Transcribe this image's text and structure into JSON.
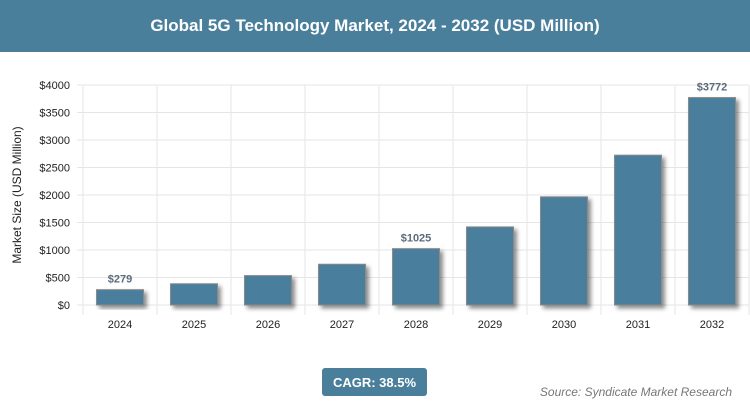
{
  "header": {
    "title": "Global 5G Technology Market, 2024 - 2032 (USD Million)"
  },
  "chart_data": {
    "type": "bar",
    "title": "Global 5G Technology Market, 2024 - 2032 (USD Million)",
    "xlabel": "",
    "ylabel": "Market Size (USD Million)",
    "ylim": [
      0,
      4000
    ],
    "yticks": [
      "$0",
      "$500",
      "$1000",
      "$1500",
      "$2000",
      "$2500",
      "$3000",
      "$3500",
      "$4000"
    ],
    "categories": [
      "2024",
      "2025",
      "2026",
      "2027",
      "2028",
      "2029",
      "2030",
      "2031",
      "2032"
    ],
    "values": [
      279,
      386,
      535,
      741,
      1025,
      1420,
      1967,
      2724,
      3772
    ],
    "data_labels": {
      "0": "$279",
      "4": "$1025",
      "8": "$3772"
    },
    "bar_color": "#4a7f9c",
    "grid": true
  },
  "footer": {
    "cagr": "CAGR: 38.5%",
    "source": "Source: Syndicate Market Research"
  }
}
